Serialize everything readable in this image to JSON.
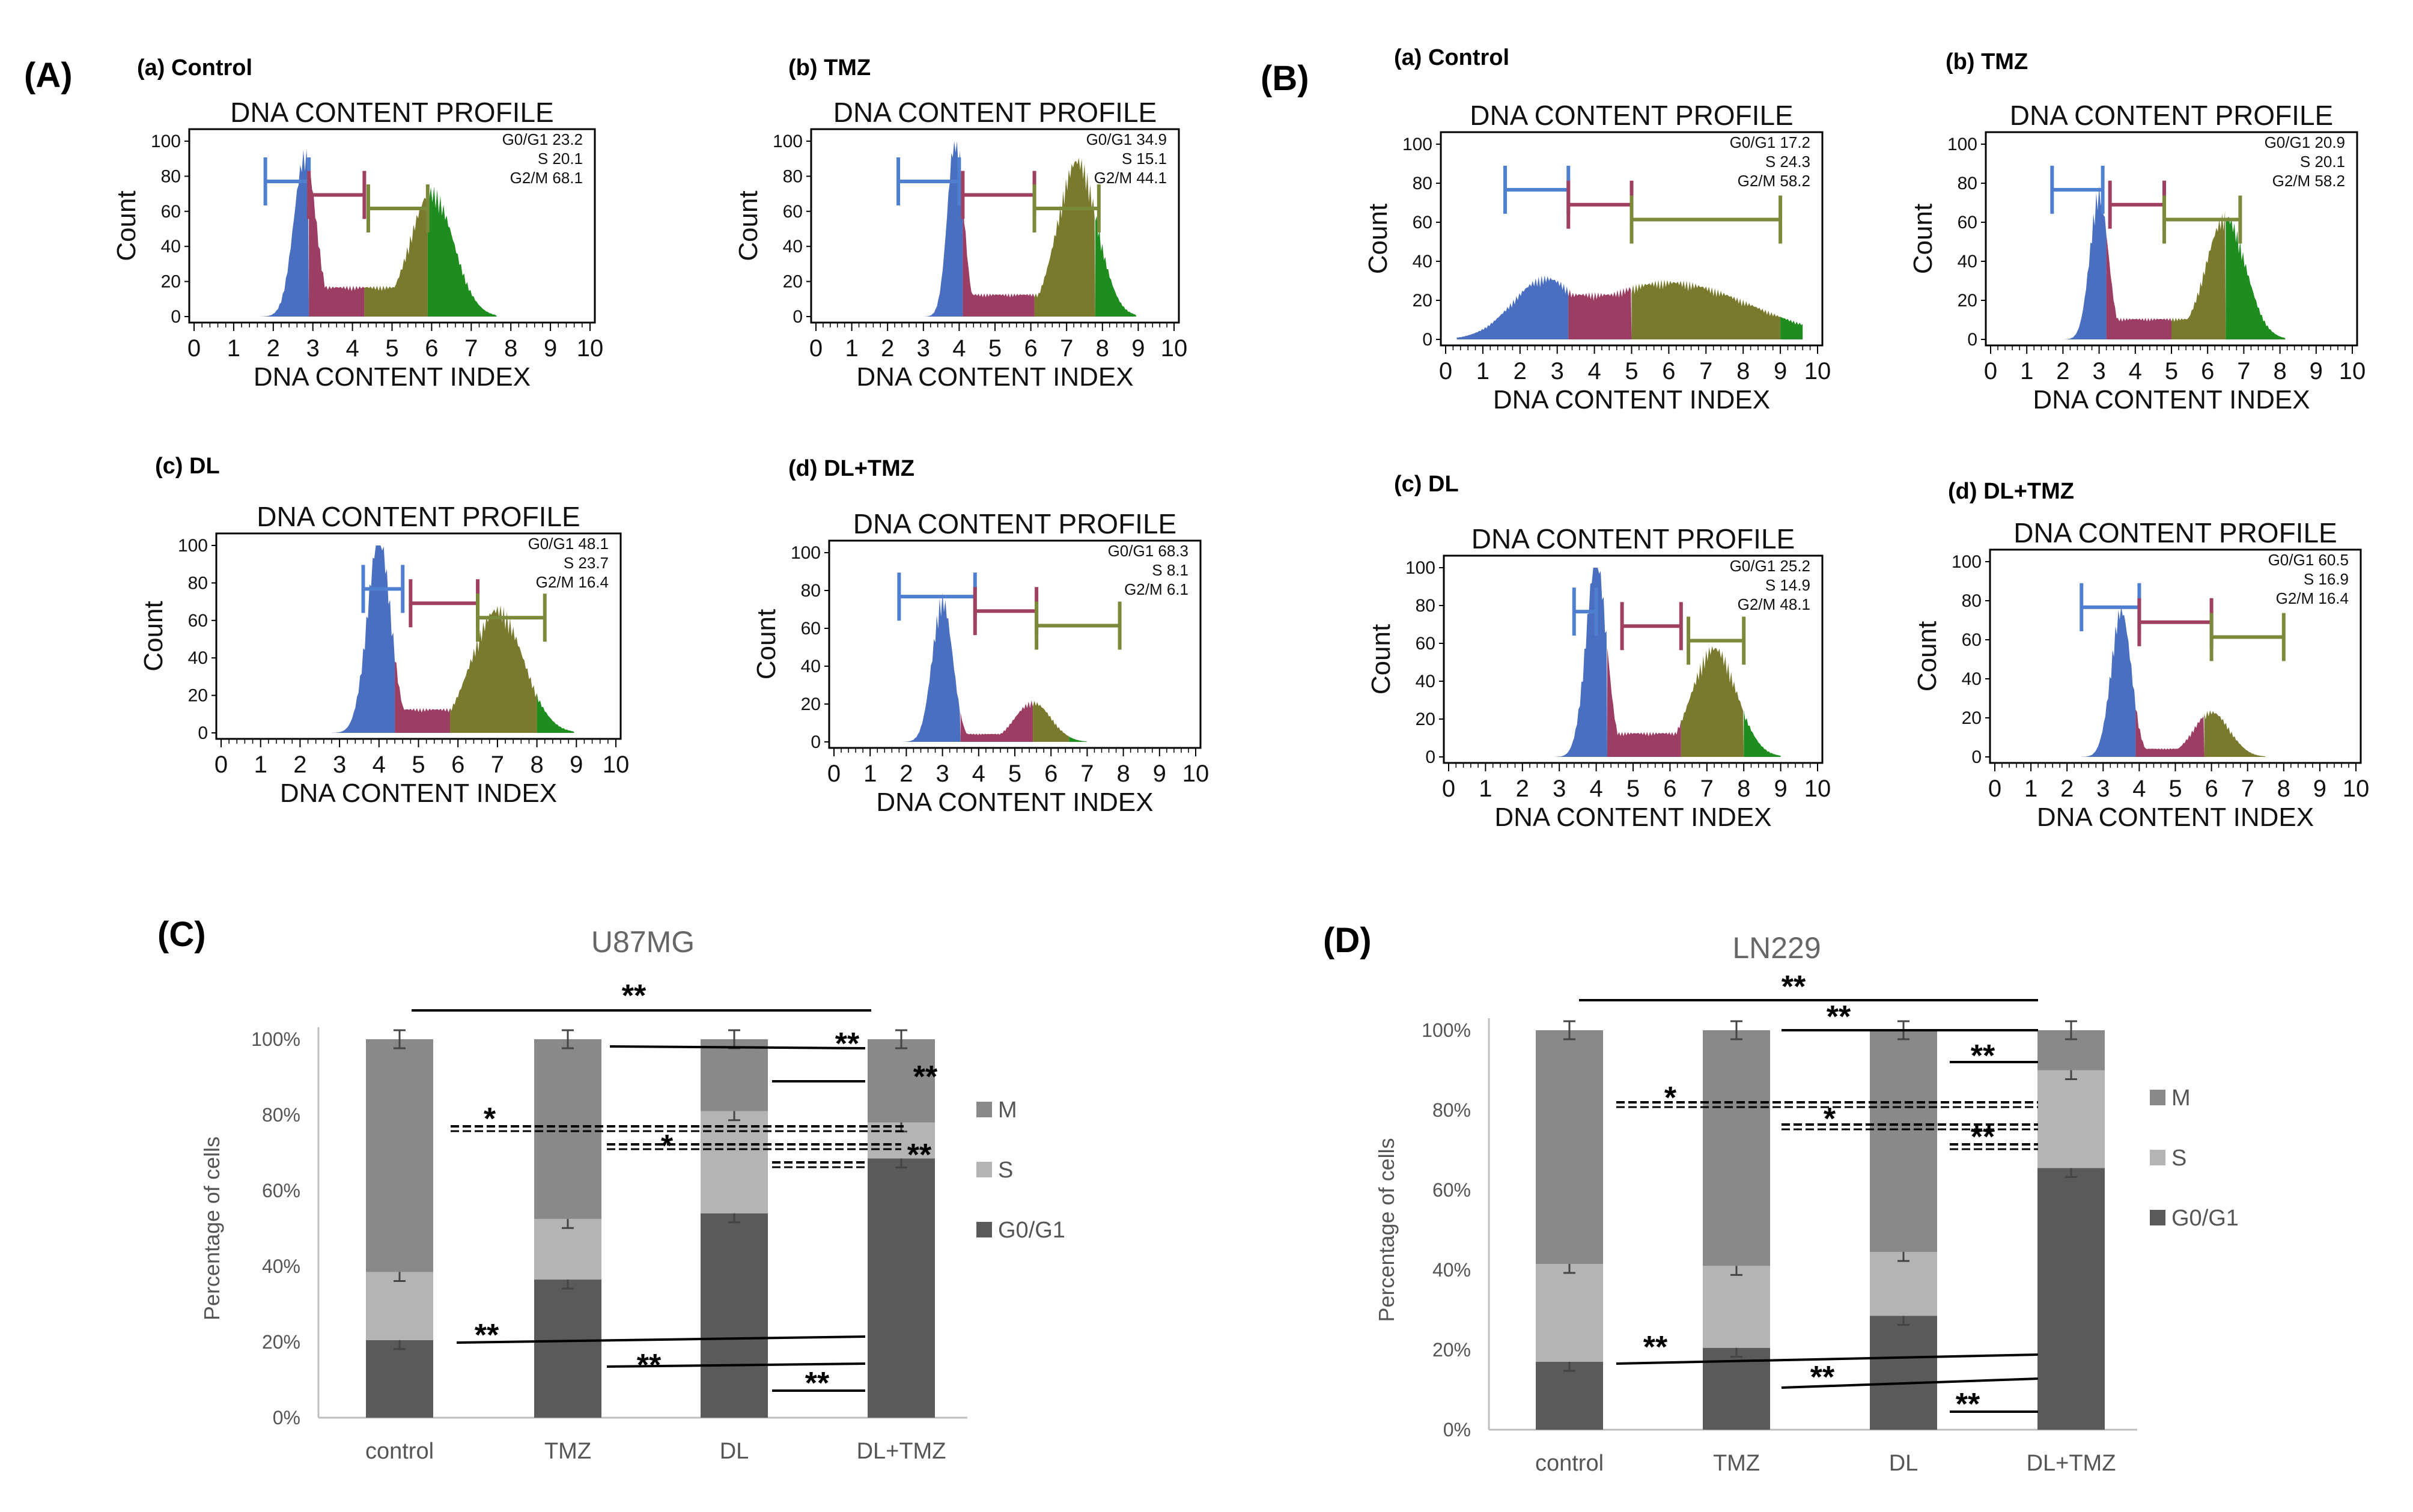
{
  "figure": {
    "panels": [
      {
        "letter": "(A)",
        "histograms": [
          {
            "label": "(a) Control",
            "title": "DNA CONTENT PROFILE",
            "xlabel": "DNA CONTENT INDEX",
            "ylabel": "Count",
            "stats": [
              "G0/G1 23.2",
              "S 20.1",
              "G2/M 68.1"
            ]
          },
          {
            "label": "(b) TMZ",
            "title": "DNA CONTENT PROFILE",
            "xlabel": "DNA CONTENT INDEX",
            "ylabel": "Count",
            "stats": [
              "G0/G1 34.9",
              "S 15.1",
              "G2/M 44.1"
            ]
          },
          {
            "label": "(c) DL",
            "title": "DNA CONTENT PROFILE",
            "xlabel": "DNA CONTENT INDEX",
            "ylabel": "Count",
            "stats": [
              "G0/G1 48.1",
              "S 23.7",
              "G2/M 16.4"
            ]
          },
          {
            "label": "(d) DL+TMZ",
            "title": "DNA CONTENT PROFILE",
            "xlabel": "DNA CONTENT INDEX",
            "ylabel": "Count",
            "stats": [
              "G0/G1 68.3",
              "S 8.1",
              "G2/M 6.1"
            ]
          }
        ]
      },
      {
        "letter": "(B)",
        "histograms": [
          {
            "label": "(a) Control",
            "title": "DNA CONTENT PROFILE",
            "xlabel": "DNA CONTENT INDEX",
            "ylabel": "Count",
            "stats": [
              "G0/G1 17.2",
              "S 24.3",
              "G2/M 58.2"
            ]
          },
          {
            "label": "(b) TMZ",
            "title": "DNA CONTENT PROFILE",
            "xlabel": "DNA CONTENT INDEX",
            "ylabel": "Count",
            "stats": [
              "G0/G1 20.9",
              "S 20.1",
              "G2/M 58.2"
            ]
          },
          {
            "label": "(c) DL",
            "title": "DNA CONTENT PROFILE",
            "xlabel": "DNA CONTENT INDEX",
            "ylabel": "Count",
            "stats": [
              "G0/G1 25.2",
              "S 14.9",
              "G2/M 48.1"
            ]
          },
          {
            "label": "(d) DL+TMZ",
            "title": "DNA CONTENT PROFILE",
            "xlabel": "DNA CONTENT INDEX",
            "ylabel": "Count",
            "stats": [
              "G0/G1 60.5",
              "S 16.9",
              "G2/M 16.4"
            ]
          }
        ]
      },
      {
        "letter": "(C)"
      },
      {
        "letter": "(D)"
      }
    ],
    "colors": {
      "g0g1": "#4a6fc0",
      "s_phase": "#9c3d64",
      "g2m_early": "#7a7a2e",
      "g2m_late": "#1e8c1e",
      "gate_blue": "#4f7fd0",
      "gate_red": "#a04060",
      "gate_green": "#7a8a3a",
      "bar_m": "#898989",
      "bar_s": "#b4b4b4",
      "bar_g": "#5a5a5a"
    }
  },
  "chart_data": [
    {
      "type": "bar",
      "stacked": true,
      "title": "U87MG",
      "ylabel": "Percentage of cells",
      "categories": [
        "control",
        "TMZ",
        "DL",
        "DL+TMZ"
      ],
      "yticks": [
        "0%",
        "20%",
        "40%",
        "60%",
        "80%",
        "100%"
      ],
      "ylim": [
        0,
        100
      ],
      "series": [
        {
          "name": "G0/G1",
          "values": [
            20.5,
            36.5,
            54.0,
            68.5
          ]
        },
        {
          "name": "S",
          "values": [
            18.0,
            16.0,
            27.0,
            9.5
          ]
        },
        {
          "name": "M",
          "values": [
            61.5,
            47.5,
            19.0,
            22.0
          ]
        }
      ],
      "legend": [
        "M",
        "S",
        "G0/G1"
      ],
      "significance": [
        "**",
        "**",
        "**",
        "*",
        "*",
        "**",
        "**",
        "**",
        "**"
      ]
    },
    {
      "type": "bar",
      "stacked": true,
      "title": "LN229",
      "ylabel": "Percentage of cells",
      "categories": [
        "control",
        "TMZ",
        "DL",
        "DL+TMZ"
      ],
      "yticks": [
        "0%",
        "20%",
        "40%",
        "60%",
        "80%",
        "100%"
      ],
      "ylim": [
        0,
        100
      ],
      "series": [
        {
          "name": "G0/G1",
          "values": [
            17.0,
            20.5,
            28.5,
            65.5
          ]
        },
        {
          "name": "S",
          "values": [
            24.5,
            20.5,
            16.0,
            24.5
          ]
        },
        {
          "name": "M",
          "values": [
            58.5,
            59.0,
            55.5,
            10.0
          ]
        }
      ],
      "legend": [
        "M",
        "S",
        "G0/G1"
      ],
      "significance": [
        "**",
        "**",
        "**",
        "*",
        "*",
        "**",
        "**",
        "**",
        "**"
      ]
    }
  ]
}
